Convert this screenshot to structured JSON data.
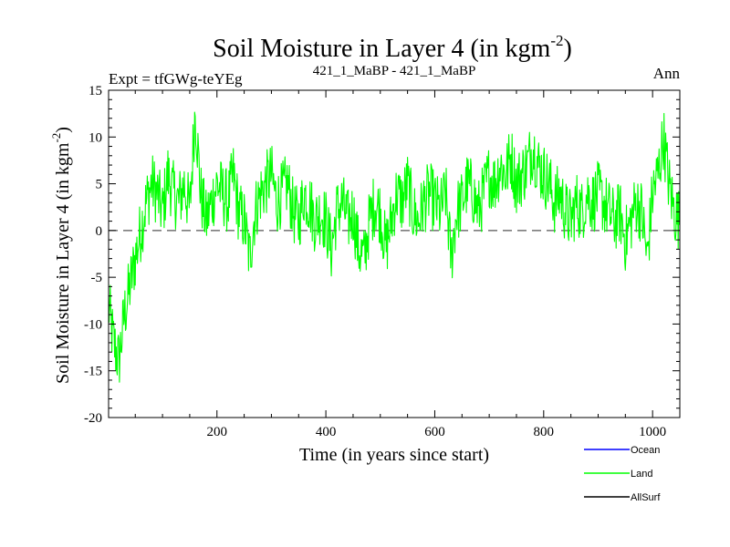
{
  "chart_data": {
    "type": "line",
    "title": "Soil Moisture in Layer 4 (in kgm",
    "title_sup": "-2",
    "title_close": ")",
    "subtitle_left": "Expt = tfGWg-teYEg",
    "subtitle_center": "421_1_MaBP - 421_1_MaBP",
    "subtitle_right": "Ann",
    "xlabel": "Time (in years since start)",
    "ylabel": "Soil Moisture in Layer 4 (in kgm",
    "ylabel_sup": "-2",
    "ylabel_close": ")",
    "xlim": [
      1,
      1050
    ],
    "ylim": [
      -20,
      15
    ],
    "xticks": [
      200,
      400,
      600,
      800,
      1000
    ],
    "yticks": [
      -20,
      -15,
      -10,
      -5,
      0,
      5,
      10,
      15
    ],
    "zero_line": true,
    "legend": [
      {
        "name": "Ocean",
        "color": "#0000ff"
      },
      {
        "name": "Land",
        "color": "#00ff00"
      },
      {
        "name": "AllSurf",
        "color": "#000000"
      }
    ],
    "series": [
      {
        "name": "Land",
        "color": "#00ff00",
        "x": [
          1,
          10,
          20,
          30,
          40,
          50,
          60,
          70,
          80,
          90,
          100,
          110,
          120,
          130,
          140,
          150,
          160,
          170,
          180,
          190,
          200,
          210,
          220,
          230,
          240,
          250,
          260,
          270,
          280,
          290,
          300,
          310,
          320,
          330,
          340,
          350,
          360,
          370,
          380,
          390,
          400,
          410,
          420,
          430,
          440,
          450,
          460,
          470,
          480,
          490,
          500,
          510,
          520,
          530,
          540,
          550,
          560,
          570,
          580,
          590,
          600,
          610,
          620,
          630,
          640,
          650,
          660,
          670,
          680,
          690,
          700,
          710,
          720,
          730,
          740,
          750,
          760,
          770,
          780,
          790,
          800,
          810,
          820,
          830,
          840,
          850,
          860,
          870,
          880,
          890,
          900,
          910,
          920,
          930,
          940,
          950,
          960,
          970,
          980,
          990,
          1000,
          1010,
          1020,
          1030,
          1040,
          1050
        ],
        "values": [
          -8,
          -12,
          -14,
          -9,
          -6,
          -3,
          0,
          3,
          5,
          4,
          2,
          6,
          4,
          3,
          5,
          2,
          13,
          4,
          1,
          3,
          5,
          4,
          3,
          6,
          2,
          1,
          -3,
          2,
          4,
          5,
          6,
          3,
          4,
          5,
          2,
          1,
          4,
          3,
          1,
          2,
          1,
          -2,
          2,
          3,
          1,
          2,
          -2,
          -3,
          1,
          3,
          2,
          -2,
          1,
          4,
          3,
          5,
          2,
          1,
          3,
          4,
          3,
          2,
          4,
          -3,
          2,
          3,
          5,
          4,
          2,
          4,
          6,
          5,
          7,
          6,
          8,
          5,
          6,
          7,
          9,
          7,
          6,
          5,
          3,
          4,
          2,
          1,
          3,
          2,
          4,
          3,
          4,
          3,
          2,
          1,
          2,
          -1,
          1,
          3,
          2,
          -3,
          4,
          6,
          10,
          5,
          2,
          1
        ]
      }
    ]
  }
}
